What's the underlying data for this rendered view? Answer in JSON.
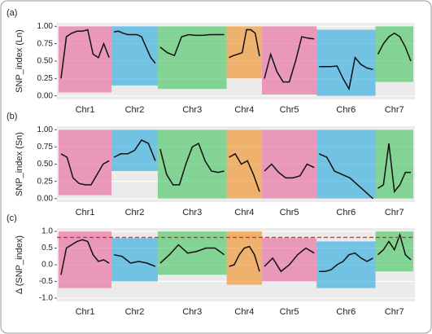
{
  "chart_data": [
    {
      "type": "line",
      "panel_label": "(a)",
      "ylabel": "SNP_index (Ln)",
      "ylim": [
        -0.05,
        1.05
      ],
      "yticks": [
        {
          "value": 0,
          "label": "0.00"
        },
        {
          "value": 0.25,
          "label": "0.25"
        },
        {
          "value": 0.5,
          "label": "0.50"
        },
        {
          "value": 0.75,
          "label": "0.75"
        },
        {
          "value": 1,
          "label": "1.00"
        }
      ],
      "grid": true,
      "chromosomes": [
        {
          "name": "Chr1",
          "color": "#e8609a",
          "cloud": [
            0.05,
            1.0
          ],
          "values": [
            0.25,
            0.85,
            0.9,
            0.93,
            0.93,
            0.95,
            0.6,
            0.55,
            0.75,
            0.55
          ]
        },
        {
          "name": "Chr2",
          "color": "#22a7e0",
          "cloud": [
            0.15,
            1.0
          ],
          "values": [
            0.92,
            0.93,
            0.9,
            0.88,
            0.88,
            0.88,
            0.85,
            0.7,
            0.55,
            0.47
          ]
        },
        {
          "name": "Chr3",
          "color": "#3cc35a",
          "cloud": [
            0.1,
            1.0
          ],
          "values": [
            0.7,
            0.62,
            0.58,
            0.85,
            0.88,
            0.87,
            0.87,
            0.88,
            0.88,
            0.88
          ]
        },
        {
          "name": "Chr4",
          "color": "#f08c1a",
          "cloud": [
            0.25,
            1.0
          ],
          "values": [
            0.55,
            0.58,
            0.6,
            0.62,
            0.95,
            0.95,
            0.9,
            0.57
          ]
        },
        {
          "name": "Chr5",
          "color": "#e8609a",
          "cloud": [
            0.02,
            1.0
          ],
          "values": [
            0.25,
            0.6,
            0.35,
            0.2,
            0.2,
            0.5,
            0.85,
            0.83,
            0.82
          ]
        },
        {
          "name": "Chr6",
          "color": "#22a7e0",
          "cloud": [
            0.0,
            0.95
          ],
          "values": [
            0.42,
            0.42,
            0.42,
            0.43,
            0.25,
            0.1,
            0.55,
            0.45,
            0.4,
            0.38
          ]
        },
        {
          "name": "Chr7",
          "color": "#3cc35a",
          "cloud": [
            0.2,
            1.0
          ],
          "values": [
            0.6,
            0.75,
            0.85,
            0.9,
            0.85,
            0.7,
            0.5
          ]
        }
      ]
    },
    {
      "type": "line",
      "panel_label": "(b)",
      "ylabel": "SNP_index (Sn)",
      "ylim": [
        -0.05,
        1.05
      ],
      "yticks": [
        {
          "value": 0,
          "label": "0.00"
        },
        {
          "value": 0.25,
          "label": "0.25"
        },
        {
          "value": 0.5,
          "label": "0.50"
        },
        {
          "value": 0.75,
          "label": "0.75"
        },
        {
          "value": 1,
          "label": "1.00"
        }
      ],
      "grid": true,
      "chromosomes": [
        {
          "name": "Chr1",
          "color": "#e8609a",
          "cloud": [
            0.05,
            1.0
          ],
          "values": [
            0.65,
            0.6,
            0.3,
            0.22,
            0.2,
            0.2,
            0.35,
            0.5,
            0.55
          ]
        },
        {
          "name": "Chr2",
          "color": "#22a7e0",
          "cloud": [
            0.4,
            1.0
          ],
          "values": [
            0.6,
            0.65,
            0.65,
            0.7,
            0.85,
            0.8,
            0.55
          ]
        },
        {
          "name": "Chr3",
          "color": "#3cc35a",
          "cloud": [
            0.0,
            1.0
          ],
          "values": [
            0.72,
            0.35,
            0.2,
            0.2,
            0.5,
            0.75,
            0.8,
            0.55,
            0.4,
            0.38,
            0.4
          ]
        },
        {
          "name": "Chr4",
          "color": "#f08c1a",
          "cloud": [
            0.0,
            1.0
          ],
          "values": [
            0.6,
            0.65,
            0.5,
            0.55,
            0.35,
            0.1
          ]
        },
        {
          "name": "Chr5",
          "color": "#e8609a",
          "cloud": [
            0.0,
            1.0
          ],
          "values": [
            0.4,
            0.5,
            0.38,
            0.3,
            0.3,
            0.33,
            0.5,
            0.45
          ]
        },
        {
          "name": "Chr6",
          "color": "#22a7e0",
          "cloud": [
            0.0,
            1.0
          ],
          "values": [
            0.65,
            0.6,
            0.4,
            0.35,
            0.3,
            0.2,
            0.1,
            0.0
          ]
        },
        {
          "name": "Chr7",
          "color": "#3cc35a",
          "cloud": [
            0.0,
            1.0
          ],
          "values": [
            0.15,
            0.2,
            0.8,
            0.1,
            0.2,
            0.38,
            0.38
          ]
        }
      ]
    },
    {
      "type": "line",
      "panel_label": "(c)",
      "ylabel": "Δ (SNP_index)",
      "ylim": [
        -1.1,
        1.1
      ],
      "yticks": [
        {
          "value": -1,
          "label": "-1.0"
        },
        {
          "value": -0.5,
          "label": "-0.5"
        },
        {
          "value": 0,
          "label": "0.0"
        },
        {
          "value": 0.5,
          "label": "0.5"
        },
        {
          "value": 1,
          "label": "1.0"
        }
      ],
      "grid": true,
      "threshold": 0.82,
      "threshold_color": "#e03030",
      "chromosomes": [
        {
          "name": "Chr1",
          "color": "#e8609a",
          "cloud": [
            -0.7,
            1.0
          ],
          "values": [
            -0.3,
            0.5,
            0.6,
            0.7,
            0.75,
            0.7,
            0.3,
            0.1,
            0.15,
            0.05
          ]
        },
        {
          "name": "Chr2",
          "color": "#22a7e0",
          "cloud": [
            -0.5,
            0.8
          ],
          "values": [
            0.3,
            0.25,
            0.05,
            0.1,
            0.05,
            -0.05
          ]
        },
        {
          "name": "Chr3",
          "color": "#3cc35a",
          "cloud": [
            -0.3,
            1.0
          ],
          "values": [
            0.05,
            0.3,
            0.6,
            0.35,
            0.4,
            0.5,
            0.5,
            0.3
          ]
        },
        {
          "name": "Chr4",
          "color": "#f08c1a",
          "cloud": [
            -0.6,
            1.0
          ],
          "values": [
            -0.05,
            0.0,
            0.3,
            0.5,
            0.55,
            0.3,
            -0.2
          ]
        },
        {
          "name": "Chr5",
          "color": "#e8609a",
          "cloud": [
            -0.5,
            0.8
          ],
          "values": [
            -0.05,
            0.2,
            -0.2,
            0.0,
            0.3,
            0.5,
            0.35
          ]
        },
        {
          "name": "Chr6",
          "color": "#22a7e0",
          "cloud": [
            -0.7,
            0.7
          ],
          "values": [
            -0.2,
            -0.2,
            -0.15,
            0.0,
            0.1,
            0.3,
            0.35,
            0.2,
            0.1,
            0.2
          ]
        },
        {
          "name": "Chr7",
          "color": "#3cc35a",
          "cloud": [
            -0.2,
            1.0
          ],
          "values": [
            0.3,
            0.45,
            0.7,
            0.45,
            0.9,
            0.3,
            0.15
          ]
        }
      ]
    }
  ]
}
